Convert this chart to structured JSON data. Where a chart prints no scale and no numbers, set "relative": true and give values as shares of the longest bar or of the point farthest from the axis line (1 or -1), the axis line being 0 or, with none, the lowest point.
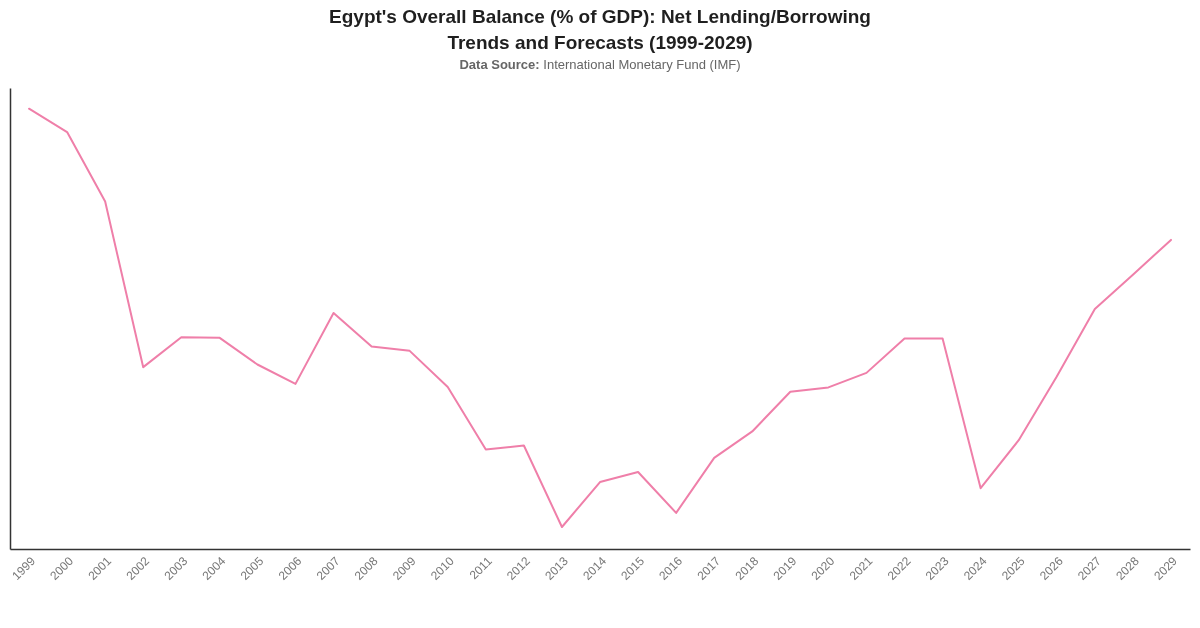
{
  "chart_data": {
    "type": "line",
    "title": "Egypt's Overall Balance (% of GDP): Net Lending/Borrowing Trends and Forecasts (1999-2029)",
    "subtitle": "Data Source: International Monetary Fund (IMF)",
    "relative": true,
    "categories": [
      "1999",
      "2000",
      "2001",
      "2002",
      "2003",
      "2004",
      "2005",
      "2006",
      "2007",
      "2008",
      "2009",
      "2010",
      "2011",
      "2012",
      "2013",
      "2014",
      "2015",
      "2016",
      "2017",
      "2018",
      "2019",
      "2020",
      "2021",
      "2022",
      "2023",
      "2024",
      "2025",
      "2026",
      "2027",
      "2028",
      "2029"
    ],
    "series": [
      {
        "color": "#ef7fa9",
        "values": [
          1,
          0.947,
          0.789,
          0.413,
          0.481,
          0.48,
          0.419,
          0.375,
          0.536,
          0.46,
          0.45,
          0.368,
          0.226,
          0.235,
          0.05,
          0.152,
          0.175,
          0.082,
          0.207,
          0.267,
          0.357,
          0.367,
          0.4,
          0.478,
          0.478,
          0.138,
          0.247,
          0.392,
          0.545,
          0.623,
          0.702
        ]
      }
    ]
  }
}
